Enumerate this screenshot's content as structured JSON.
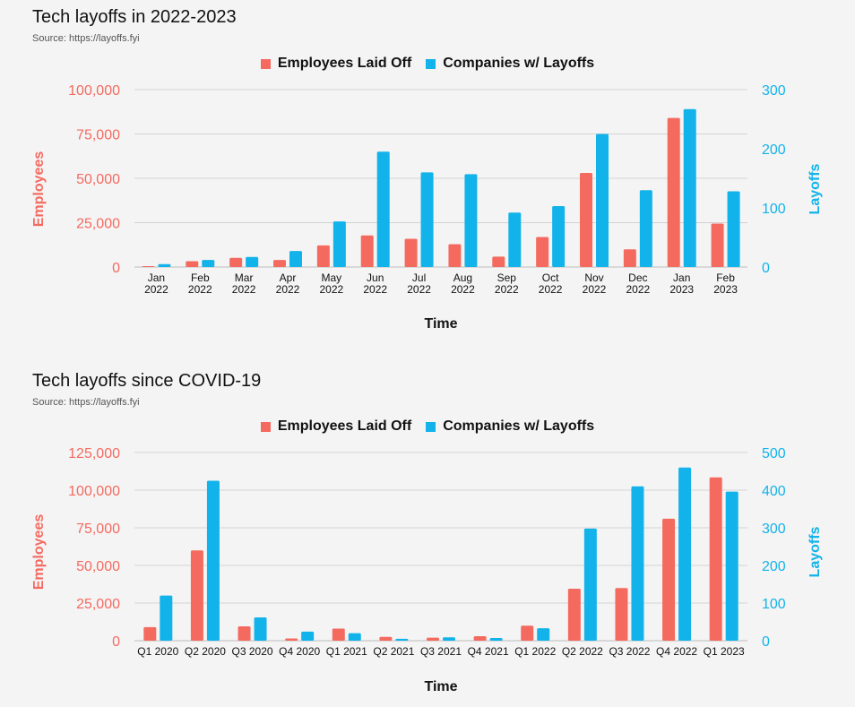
{
  "colors": {
    "employees": "#f46a5f",
    "companies": "#12b3ea",
    "grid": "#c8c8c8"
  },
  "chart_data": [
    {
      "type": "bar",
      "title": "Tech layoffs in 2022-2023",
      "source": "Source: https://layoffs.fyi",
      "legend": [
        "Employees Laid Off",
        "Companies w/ Layoffs"
      ],
      "xlabel": "Time",
      "ylabel_left": "Employees",
      "ylabel_right": "Layoffs",
      "ylim_left": [
        0,
        100000
      ],
      "ylim_right": [
        0,
        300
      ],
      "yticks_left": [
        "0",
        "25,000",
        "50,000",
        "75,000",
        "100,000"
      ],
      "yticks_right": [
        "0",
        "100",
        "200",
        "300"
      ],
      "categories": [
        [
          "Jan",
          "2022"
        ],
        [
          "Feb",
          "2022"
        ],
        [
          "Mar",
          "2022"
        ],
        [
          "Apr",
          "2022"
        ],
        [
          "May",
          "2022"
        ],
        [
          "Jun",
          "2022"
        ],
        [
          "Jul",
          "2022"
        ],
        [
          "Aug",
          "2022"
        ],
        [
          "Sep",
          "2022"
        ],
        [
          "Oct",
          "2022"
        ],
        [
          "Nov",
          "2022"
        ],
        [
          "Dec",
          "2022"
        ],
        [
          "Jan",
          "2023"
        ],
        [
          "Feb",
          "2023"
        ]
      ],
      "series": [
        {
          "name": "Employees Laid Off",
          "axis": "left",
          "values": [
            500,
            3300,
            5200,
            4000,
            12200,
            17800,
            15900,
            12900,
            5900,
            16900,
            53000,
            10000,
            84000,
            24500
          ]
        },
        {
          "name": "Companies w/ Layoffs",
          "axis": "right",
          "values": [
            5,
            12,
            17,
            27,
            77,
            195,
            160,
            157,
            92,
            103,
            225,
            130,
            267,
            128
          ]
        }
      ]
    },
    {
      "type": "bar",
      "title": "Tech layoffs since COVID-19",
      "source": "Source: https://layoffs.fyi",
      "legend": [
        "Employees Laid Off",
        "Companies w/ Layoffs"
      ],
      "xlabel": "Time",
      "ylabel_left": "Employees",
      "ylabel_right": "Layoffs",
      "ylim_left": [
        0,
        125000
      ],
      "ylim_right": [
        0,
        500
      ],
      "yticks_left": [
        "0",
        "25,000",
        "50,000",
        "75,000",
        "100,000",
        "125,000"
      ],
      "yticks_right": [
        "0",
        "100",
        "200",
        "300",
        "400",
        "500"
      ],
      "categories": [
        [
          "Q1 2020"
        ],
        [
          "Q2 2020"
        ],
        [
          "Q3 2020"
        ],
        [
          "Q4 2020"
        ],
        [
          "Q1 2021"
        ],
        [
          "Q2 2021"
        ],
        [
          "Q3 2021"
        ],
        [
          "Q4 2021"
        ],
        [
          "Q1 2022"
        ],
        [
          "Q2 2022"
        ],
        [
          "Q3 2022"
        ],
        [
          "Q4 2022"
        ],
        [
          "Q1 2023"
        ]
      ],
      "series": [
        {
          "name": "Employees Laid Off",
          "axis": "left",
          "values": [
            9000,
            60000,
            9500,
            1500,
            8000,
            2500,
            2000,
            3000,
            10000,
            34500,
            35000,
            81000,
            108500
          ]
        },
        {
          "name": "Companies w/ Layoffs",
          "axis": "right",
          "values": [
            120,
            425,
            62,
            24,
            20,
            5,
            9,
            7,
            33,
            298,
            410,
            460,
            396
          ]
        }
      ]
    }
  ]
}
